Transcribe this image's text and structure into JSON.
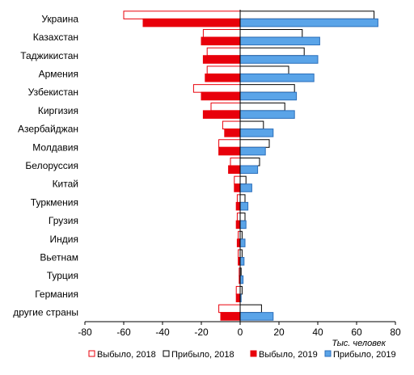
{
  "chart_data": {
    "type": "bar",
    "orientation": "horizontal",
    "categories": [
      "Украина",
      "Казахстан",
      "Таджикистан",
      "Армения",
      "Узбекистан",
      "Киргизия",
      "Азербайджан",
      "Молдавия",
      "Белоруссия",
      "Китай",
      "Туркмения",
      "Грузия",
      "Индия",
      "Вьетнам",
      "Турция",
      "Германия",
      "другие страны"
    ],
    "series": [
      {
        "name": "Выбыло, 2018",
        "color": "#e8000b",
        "fill": "#ffffff",
        "values": [
          -60,
          -19,
          -17,
          -17,
          -24,
          -15,
          -9,
          -11,
          -5,
          -3,
          -1.5,
          -1.5,
          -1,
          -1,
          -0.5,
          -2,
          -11
        ]
      },
      {
        "name": "Прибыло, 2018",
        "color": "#000000",
        "fill": "#ffffff",
        "values": [
          69,
          32,
          33,
          25,
          28,
          23,
          12,
          15,
          10,
          3,
          2.5,
          2.5,
          1,
          1,
          0.5,
          1,
          11
        ]
      },
      {
        "name": "Выбыло, 2019",
        "color": "#e8000b",
        "fill": "#e8000b",
        "values": [
          -50,
          -20,
          -19,
          -18,
          -20,
          -19,
          -8,
          -11,
          -6,
          -3,
          -2,
          -2,
          -1.5,
          -1,
          -0.5,
          -2,
          -10
        ]
      },
      {
        "name": "Прибыло, 2019",
        "color": "#2a6ebb",
        "fill": "#5aa4e8",
        "values": [
          71,
          41,
          40,
          38,
          29,
          28,
          17,
          13,
          9,
          6,
          4,
          3,
          2.5,
          2,
          1.5,
          0.5,
          17
        ]
      }
    ],
    "xlim": [
      -80,
      80
    ],
    "xticks": [
      "-80",
      "-60",
      "-40",
      "-20",
      "0",
      "20",
      "40",
      "60",
      "80"
    ],
    "xlabel": "Тыс. человек",
    "legend_position": "bottom",
    "grid": false
  }
}
